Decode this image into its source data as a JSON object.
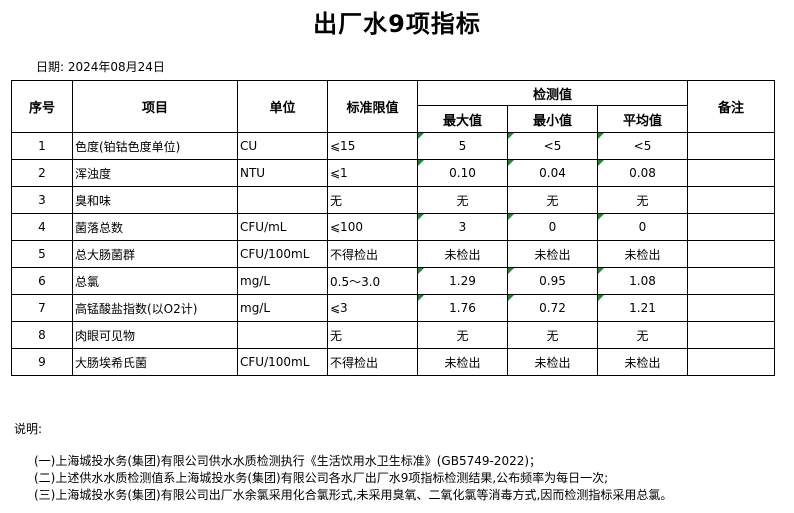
{
  "title": "出厂水9项指标",
  "date": "日期: 2024年08月24日",
  "headers": {
    "no": "序号",
    "item": "项目",
    "unit": "单位",
    "limit": "标准限值",
    "detect": "检测值",
    "max": "最大值",
    "min": "最小值",
    "avg": "平均值",
    "remark": "备注"
  },
  "rows": [
    {
      "no": "1",
      "item": "色度(铂钴色度单位)",
      "unit": "CU",
      "limit": "⩽15",
      "max": "5",
      "min": "<5",
      "avg": "<5"
    },
    {
      "no": "2",
      "item": "浑浊度",
      "unit": "NTU",
      "limit": "⩽1",
      "max": "0.10",
      "min": "0.04",
      "avg": "0.08"
    },
    {
      "no": "3",
      "item": "臭和味",
      "unit": "",
      "limit": "无",
      "max": "无",
      "min": "无",
      "avg": "无"
    },
    {
      "no": "4",
      "item": "菌落总数",
      "unit": "CFU/mL",
      "limit": "⩽100",
      "max": "3",
      "min": "0",
      "avg": "0"
    },
    {
      "no": "5",
      "item": "总大肠菌群",
      "unit": "CFU/100mL",
      "limit": "不得检出",
      "max": "未检出",
      "min": "未检出",
      "avg": "未检出"
    },
    {
      "no": "6",
      "item": "总氯",
      "unit": "mg/L",
      "limit": "0.5～3.0",
      "max": "1.29",
      "min": "0.95",
      "avg": "1.08"
    },
    {
      "no": "7",
      "item": "高锰酸盐指数(以O2计)",
      "unit": "mg/L",
      "limit": "⩽3",
      "max": "1.76",
      "min": "0.72",
      "avg": "1.21"
    },
    {
      "no": "8",
      "item": "肉眼可见物",
      "unit": "",
      "limit": "无",
      "max": "无",
      "min": "无",
      "avg": "无"
    },
    {
      "no": "9",
      "item": "大肠埃希氏菌",
      "unit": "CFU/100mL",
      "limit": "不得检出",
      "max": "未检出",
      "min": "未检出",
      "avg": "未检出"
    }
  ],
  "notes": {
    "label": "说明:",
    "lines": [
      "(一)上海城投水务(集团)有限公司供水水质检测执行《生活饮用水卫生标准》(GB5749-2022)；",
      "(二)上述供水水质检测值系上海城投水务(集团)有限公司各水厂出厂水9项指标检测结果,公布频率为每日一次;",
      "(三)上海城投水务(集团)有限公司出厂水余氯采用化合氯形式,未采用臭氧、二氧化氯等消毒方式,因而检测指标采用总氯。"
    ]
  }
}
